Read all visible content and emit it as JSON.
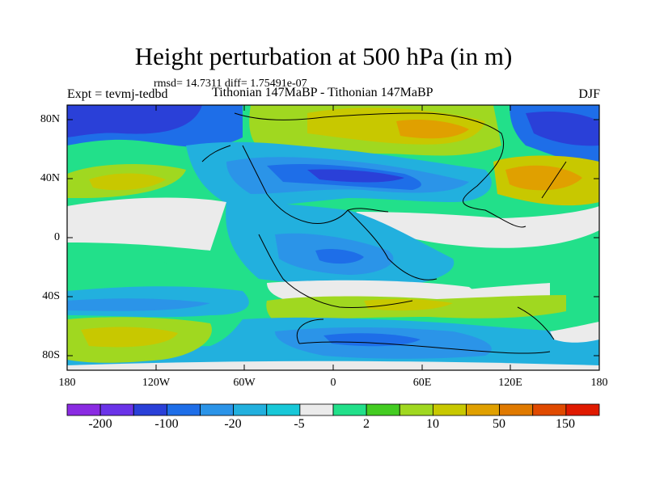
{
  "figure": {
    "title": "Height perturbation at 500 hPa (in m)",
    "stats": "rmsd= 14.7311 diff= 1.75491e-07",
    "left_label": "Expt = tevmj-tedbd",
    "center_label": "Tithonian 147MaBP - Tithonian 147MaBP",
    "right_label": "DJF"
  },
  "map": {
    "projection": "cylindrical equidistant",
    "lat_ticks": [
      "80N",
      "40N",
      "0",
      "40S",
      "80S"
    ],
    "lon_ticks": [
      "180",
      "120W",
      "60W",
      "0",
      "60E",
      "120E",
      "180"
    ],
    "features": [
      "zonal-wave-pattern",
      "paleo-continent-outlines"
    ]
  },
  "colorbar": {
    "labels": [
      "-200",
      "-100",
      "-20",
      "-5",
      "2",
      "10",
      "50",
      "150"
    ],
    "colors": [
      "#8a2be2",
      "#6a33e8",
      "#2a40d8",
      "#1e6ee8",
      "#2b94e8",
      "#22b0de",
      "#18c8d8",
      "#ebebeb",
      "#22e08a",
      "#44cc22",
      "#a0d820",
      "#c8c800",
      "#e0a000",
      "#e07a00",
      "#e04a00",
      "#e01a00"
    ]
  }
}
